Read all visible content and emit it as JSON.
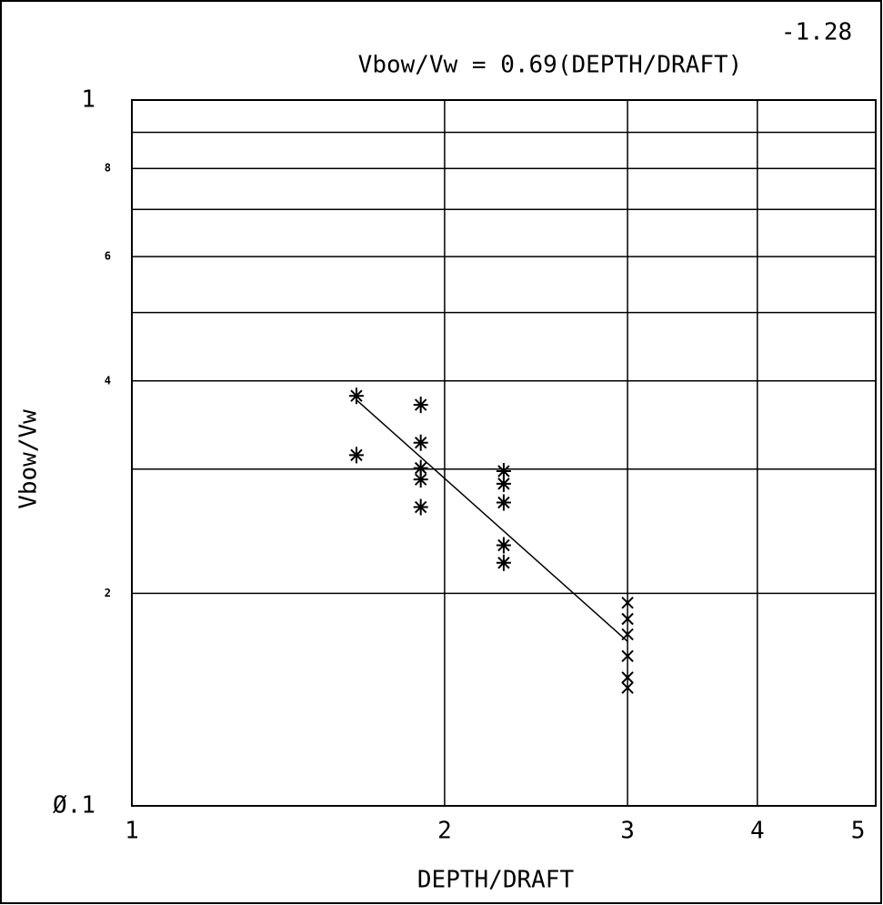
{
  "chart_data": {
    "type": "scatter",
    "title": "Vbow/Vw = 0.69(DEPTH/DRAFT)",
    "title_exponent": "-1.28",
    "xlabel": "DEPTH/DRAFT",
    "ylabel": "Vbow/Vw",
    "xscale": "log",
    "yscale": "log",
    "xlim": [
      1,
      5.2
    ],
    "ylim": [
      0.1,
      1
    ],
    "xticks": [
      1,
      2,
      3,
      4,
      5
    ],
    "xgrid": [
      2,
      3,
      4
    ],
    "yticks": [
      {
        "value": 0.1,
        "label": "Ø.1"
      },
      {
        "value": 0.2,
        "label": "2"
      },
      {
        "value": 0.4,
        "label": "4"
      },
      {
        "value": 0.6,
        "label": "6"
      },
      {
        "value": 0.8,
        "label": "8"
      },
      1
    ],
    "ygrid": [
      0.2,
      0.3,
      0.4,
      0.5,
      0.6,
      0.7,
      0.8,
      0.9
    ],
    "color": "#000000",
    "series": [
      {
        "marker": "asterisk",
        "x": [
          1.645,
          1.645,
          1.897,
          1.897,
          1.897,
          1.897,
          1.897,
          2.28,
          2.28,
          2.28,
          2.28,
          2.28
        ],
        "values": [
          0.381,
          0.314,
          0.37,
          0.327,
          0.301,
          0.29,
          0.265,
          0.298,
          0.286,
          0.269,
          0.234,
          0.221
        ]
      },
      {
        "marker": "cross",
        "x": [
          3.0,
          3.0,
          3.0,
          3.0,
          3.0,
          3.0
        ],
        "values": [
          0.194,
          0.184,
          0.175,
          0.163,
          0.152,
          0.147
        ]
      }
    ],
    "fit_line": {
      "x": [
        1.645,
        3.0
      ],
      "values": [
        0.376,
        0.171
      ]
    }
  }
}
